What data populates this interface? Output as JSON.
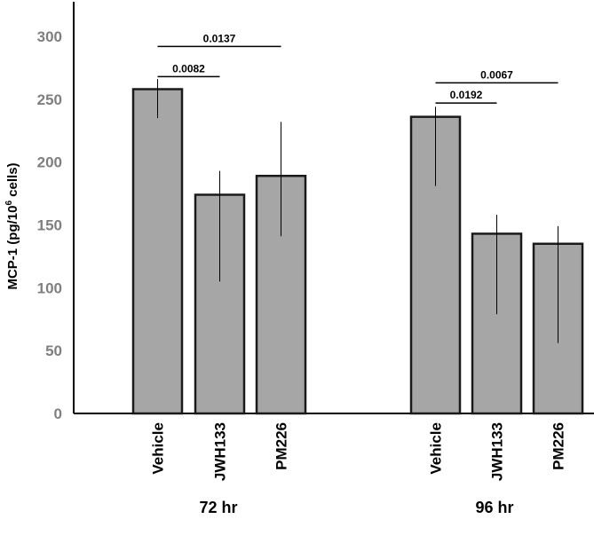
{
  "chart_data": {
    "type": "bar",
    "ylabel": "MCP-1 (pg/10",
    "ylabel_sup": "6",
    "ylabel_tail": " cells)",
    "ylim": [
      0,
      300
    ],
    "yticks": [
      0,
      50,
      100,
      150,
      200,
      250,
      300
    ],
    "grid": false,
    "colors": {
      "bar": "#a6a6a6",
      "bar_edge": "#1a1a1a",
      "axis": "#000000",
      "tick_label": "#7f7f7f"
    },
    "groups": [
      {
        "label": "72 hr",
        "bars": [
          {
            "category": "Vehicle",
            "value": 258,
            "err_low": 235,
            "err_high": 266
          },
          {
            "category": "JWH133",
            "value": 174,
            "err_low": 105,
            "err_high": 193
          },
          {
            "category": "PM226",
            "value": 189,
            "err_low": 141,
            "err_high": 232
          }
        ],
        "comparisons": [
          {
            "from": 0,
            "to": 1,
            "p": "0.0082",
            "y": 268
          },
          {
            "from": 0,
            "to": 2,
            "p": "0.0137",
            "y": 292
          }
        ]
      },
      {
        "label": "96 hr",
        "bars": [
          {
            "category": "Vehicle",
            "value": 236,
            "err_low": 181,
            "err_high": 244
          },
          {
            "category": "JWH133",
            "value": 143,
            "err_low": 79,
            "err_high": 158
          },
          {
            "category": "PM226",
            "value": 135,
            "err_low": 56,
            "err_high": 149
          }
        ],
        "comparisons": [
          {
            "from": 0,
            "to": 1,
            "p": "0.0192",
            "y": 247
          },
          {
            "from": 0,
            "to": 2,
            "p": "0.0067",
            "y": 263
          }
        ]
      }
    ]
  }
}
